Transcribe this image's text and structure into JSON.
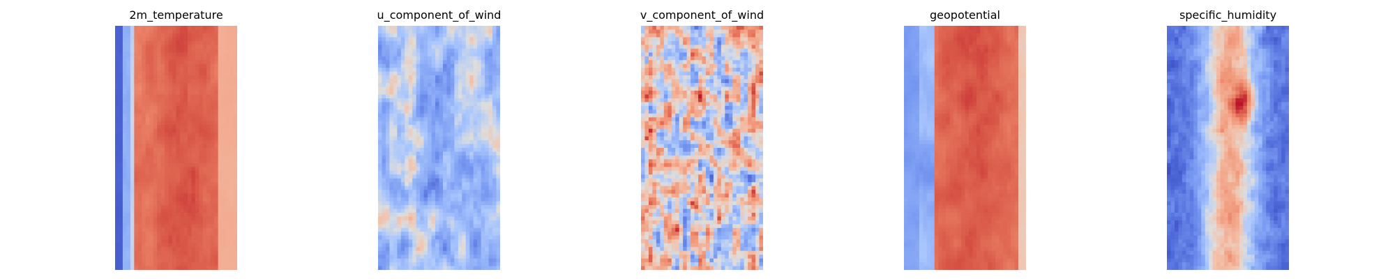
{
  "chart_data": [
    {
      "type": "heatmap",
      "title": "2m_temperature",
      "colormap": "coolwarm",
      "axes": "off",
      "pattern": "temperature"
    },
    {
      "type": "heatmap",
      "title": "u_component_of_wind",
      "colormap": "coolwarm",
      "axes": "off",
      "pattern": "u_wind"
    },
    {
      "type": "heatmap",
      "title": "v_component_of_wind",
      "colormap": "coolwarm",
      "axes": "off",
      "pattern": "v_wind"
    },
    {
      "type": "heatmap",
      "title": "geopotential",
      "colormap": "coolwarm",
      "axes": "off",
      "pattern": "geopotential"
    },
    {
      "type": "heatmap",
      "title": "specific_humidity",
      "colormap": "coolwarm",
      "axes": "off",
      "pattern": "humidity"
    }
  ]
}
